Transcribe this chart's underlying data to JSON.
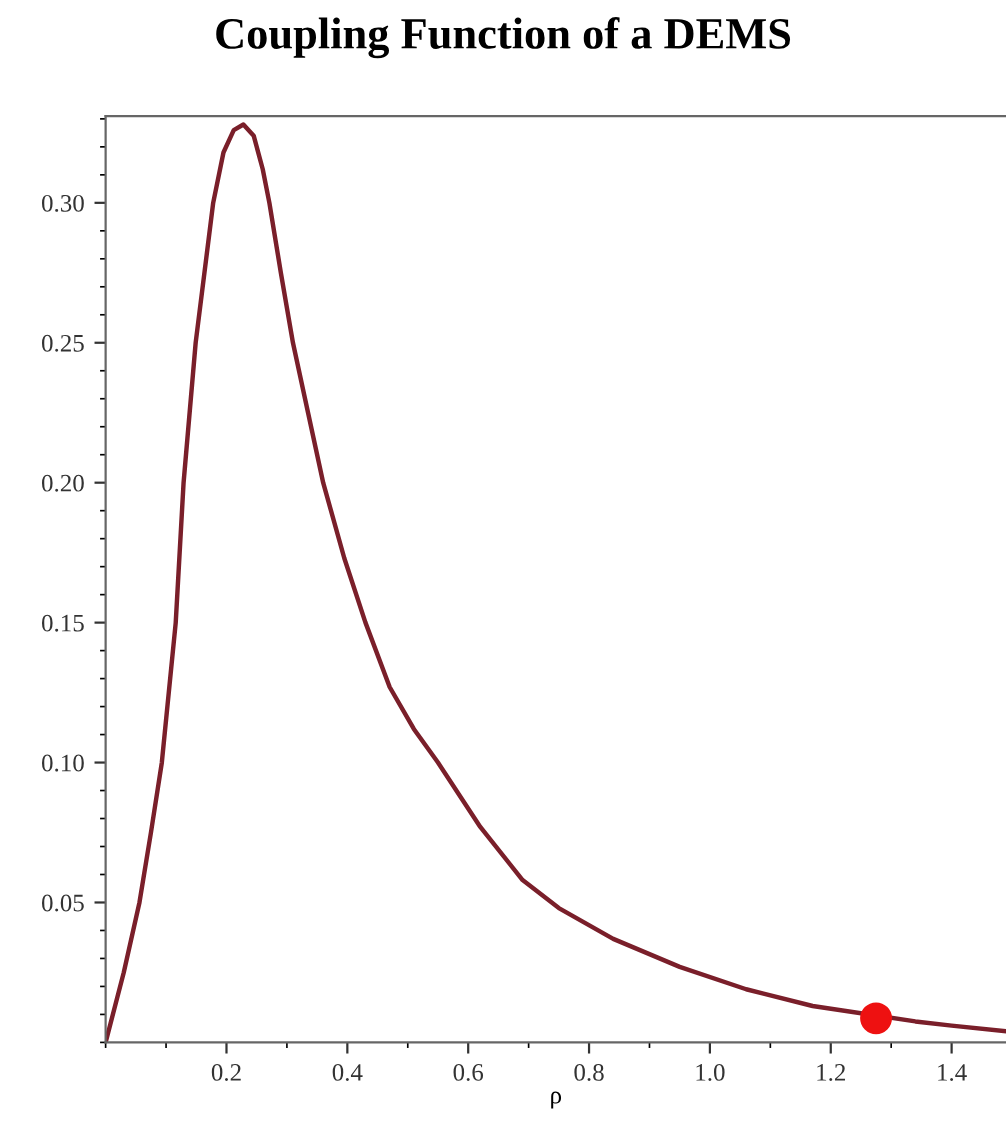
{
  "chart_data": {
    "type": "line",
    "title": "Coupling Function of a DEMS",
    "xlabel": "ρ",
    "series": [
      {
        "color": "#7a1f2a",
        "marker": "none",
        "line_style": "solid",
        "x": [
          0,
          0.03,
          0.056,
          0.075,
          0.093,
          0.116,
          0.129,
          0.149,
          0.178,
          0.195,
          0.212,
          0.228,
          0.245,
          0.26,
          0.271,
          0.29,
          0.31,
          0.335,
          0.36,
          0.395,
          0.43,
          0.47,
          0.51,
          0.55,
          0.62,
          0.69,
          0.75,
          0.84,
          0.95,
          1.06,
          1.17,
          1.34,
          1.4,
          1.49
        ],
        "values": [
          0,
          0.025,
          0.05,
          0.075,
          0.1,
          0.15,
          0.2,
          0.25,
          0.3,
          0.318,
          0.326,
          0.328,
          0.324,
          0.312,
          0.3,
          0.275,
          0.25,
          0.225,
          0.2,
          0.173,
          0.15,
          0.127,
          0.112,
          0.1,
          0.077,
          0.058,
          0.048,
          0.037,
          0.027,
          0.019,
          0.013,
          0.0075,
          0.006,
          0.004
        ]
      },
      {
        "type": "scatter",
        "color": "#ee1111",
        "marker": "circle",
        "x": [
          1.275
        ],
        "values": [
          0.0086
        ]
      }
    ],
    "xlim": [
      0,
      1.49
    ],
    "ylim": [
      0,
      0.331
    ],
    "xticks": [
      0.2,
      0.4,
      0.6,
      {
        "value": 0.8,
        "label": "0.8"
      },
      {
        "value": 1.0,
        "label": "1.0"
      },
      1.2,
      1.4
    ],
    "yticks": [
      0.05,
      {
        "value": 0.1,
        "label": "0.10"
      },
      0.15,
      {
        "value": 0.2,
        "label": "0.20"
      },
      0.25,
      {
        "value": 0.3,
        "label": "0.30"
      }
    ],
    "grid": false,
    "legend": false
  }
}
